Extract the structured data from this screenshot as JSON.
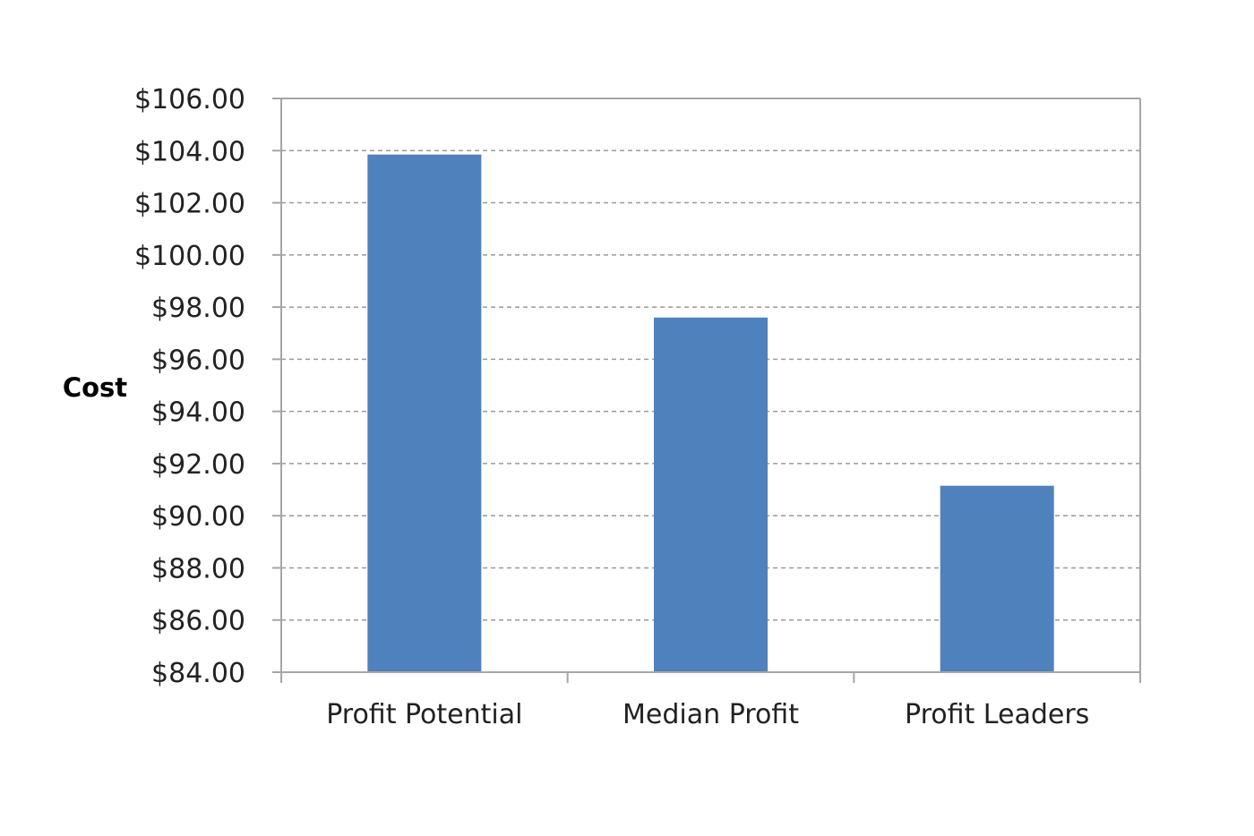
{
  "chart_data": {
    "type": "bar",
    "title": "",
    "xlabel": "",
    "ylabel": "Cost",
    "categories": [
      "Profit Potential",
      "Median Profit",
      "Profit Leaders"
    ],
    "values": [
      103.85,
      97.6,
      91.15
    ],
    "ylim": [
      84,
      106
    ],
    "y_ticks": [
      84,
      86,
      88,
      90,
      92,
      94,
      96,
      98,
      100,
      102,
      104,
      106
    ],
    "y_tick_labels": [
      "$84.00",
      "$86.00",
      "$88.00",
      "$90.00",
      "$92.00",
      "$94.00",
      "$96.00",
      "$98.00",
      "$100.00",
      "$102.00",
      "$104.00",
      "$106.00"
    ],
    "grid": "horizontal dashed",
    "legend": "none",
    "colors": {
      "bar": "#4f81bd",
      "grid": "#9a9a9a",
      "axis": "#a6a6a6"
    }
  }
}
